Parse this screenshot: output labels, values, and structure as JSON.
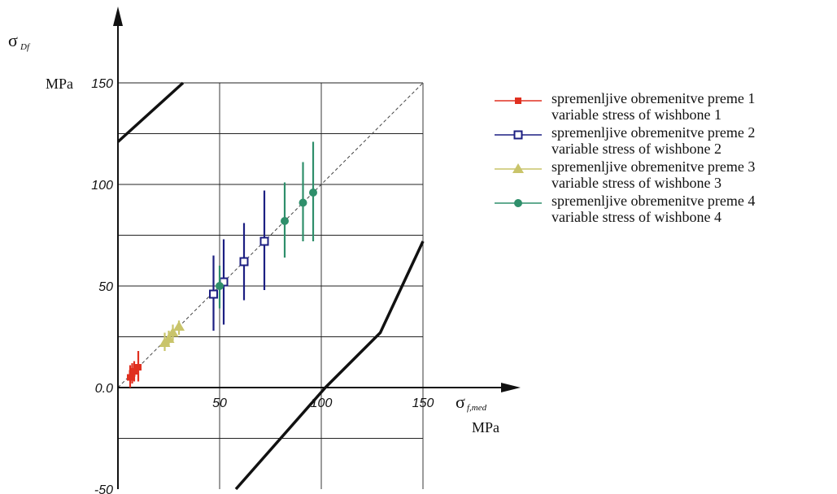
{
  "chart_data": {
    "type": "scatter",
    "title": "",
    "xlabel": {
      "symbol": "σ",
      "subscript": "f,med",
      "unit": "MPa"
    },
    "ylabel": {
      "symbol": "σ",
      "subscript": "Df",
      "unit": "MPa"
    },
    "xlim": [
      0,
      150
    ],
    "ylim": [
      -50,
      150
    ],
    "xticks": [
      {
        "value": 50,
        "label": "50"
      },
      {
        "value": 100,
        "label": "100"
      },
      {
        "value": 150,
        "label": "150"
      }
    ],
    "yticks": [
      {
        "value": -50,
        "label": "-50"
      },
      {
        "value": 0,
        "label": "0.0"
      },
      {
        "value": 50,
        "label": "50"
      },
      {
        "value": 100,
        "label": "100"
      },
      {
        "value": 150,
        "label": "150"
      }
    ],
    "xgrid": [
      50,
      100,
      150
    ],
    "ygrid": [
      -25,
      25,
      50,
      75,
      100,
      125,
      150
    ],
    "grid": true,
    "legend_position": "right",
    "reference_line": {
      "style": "dashed",
      "color": "#444444",
      "points": [
        [
          0,
          0
        ],
        [
          150,
          150
        ]
      ]
    },
    "limit_lines": [
      {
        "name": "upper limit",
        "color": "#111111",
        "points": [
          [
            0,
            121
          ],
          [
            32,
            150
          ]
        ]
      },
      {
        "name": "lower limit",
        "color": "#111111",
        "points": [
          [
            58,
            -50
          ],
          [
            102,
            0
          ],
          [
            129,
            27
          ],
          [
            150,
            72
          ]
        ]
      }
    ],
    "series": [
      {
        "name": "spremenljive obremenitve preme 1",
        "name_en": "variable stress of wishbone 1",
        "color": "#e03020",
        "marker": "filled-square",
        "points": [
          {
            "x": 6,
            "y": 5,
            "ymin": 0,
            "ymax": 11
          },
          {
            "x": 7,
            "y": 7,
            "ymin": 2,
            "ymax": 12
          },
          {
            "x": 8,
            "y": 8,
            "ymin": 3,
            "ymax": 13
          },
          {
            "x": 10,
            "y": 10,
            "ymin": 3,
            "ymax": 18
          }
        ]
      },
      {
        "name": "spremenljive obremenitve preme 2",
        "name_en": "variable stress of wishbone 2",
        "color": "#1c1f82",
        "marker": "open-square",
        "points": [
          {
            "x": 47,
            "y": 46,
            "ymin": 28,
            "ymax": 65
          },
          {
            "x": 52,
            "y": 52,
            "ymin": 31,
            "ymax": 73
          },
          {
            "x": 62,
            "y": 62,
            "ymin": 43,
            "ymax": 81
          },
          {
            "x": 72,
            "y": 72,
            "ymin": 48,
            "ymax": 97
          }
        ]
      },
      {
        "name": "spremenljive obremenitve preme 3",
        "name_en": "variable stress of wishbone 3",
        "color": "#c9c46a",
        "marker": "triangle",
        "points": [
          {
            "x": 23,
            "y": 22,
            "ymin": 18,
            "ymax": 27
          },
          {
            "x": 25,
            "y": 24,
            "ymin": 20,
            "ymax": 28
          },
          {
            "x": 27,
            "y": 27,
            "ymin": 23,
            "ymax": 31
          },
          {
            "x": 30,
            "y": 30,
            "ymin": 26,
            "ymax": 33
          }
        ]
      },
      {
        "name": "spremenljive obremenitve preme 4",
        "name_en": "variable stress of wishbone 4",
        "color": "#2f8f6b",
        "marker": "filled-circle",
        "points": [
          {
            "x": 50,
            "y": 50,
            "ymin": 39,
            "ymax": 60
          },
          {
            "x": 82,
            "y": 82,
            "ymin": 64,
            "ymax": 101
          },
          {
            "x": 91,
            "y": 91,
            "ymin": 72,
            "ymax": 111
          },
          {
            "x": 96,
            "y": 96,
            "ymin": 72,
            "ymax": 121
          }
        ]
      }
    ]
  }
}
